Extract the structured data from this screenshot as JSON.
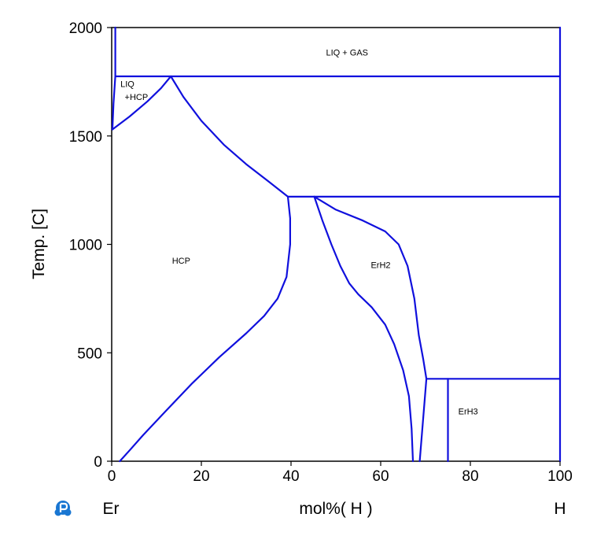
{
  "chart_data": {
    "type": "line",
    "title": "",
    "xlabel": "mol%( H )",
    "ylabel": "Temp. [C]",
    "x_left_element": "Er",
    "x_right_element": "H",
    "xlim": [
      0,
      100
    ],
    "ylim": [
      0,
      2000
    ],
    "x_ticks": [
      0,
      20,
      40,
      60,
      80,
      100
    ],
    "y_ticks": [
      0,
      500,
      1000,
      1500,
      2000
    ],
    "line_color": "#1010dd",
    "region_labels": [
      {
        "text": "LIQ + GAS",
        "x": 52.5,
        "y": 1885
      },
      {
        "text": "LIQ",
        "x": 3.5,
        "y": 1740
      },
      {
        "text": "+HCP",
        "x": 5.5,
        "y": 1680
      },
      {
        "text": "HCP",
        "x": 15.5,
        "y": 925
      },
      {
        "text": "ErH2",
        "x": 60.0,
        "y": 905
      },
      {
        "text": "ErH3",
        "x": 79.5,
        "y": 230
      }
    ],
    "series": [
      {
        "values": [
          [
            0.8,
            2000
          ],
          [
            0.8,
            1775
          ]
        ]
      },
      {
        "values": [
          [
            0.8,
            1775
          ],
          [
            100,
            1775
          ]
        ]
      },
      {
        "values": [
          [
            0.8,
            1775
          ],
          [
            0.4,
            1650
          ],
          [
            0.15,
            1530
          ]
        ]
      },
      {
        "values": [
          [
            0.15,
            1530
          ],
          [
            4,
            1590
          ],
          [
            8,
            1660
          ],
          [
            11,
            1720
          ],
          [
            13.2,
            1775
          ]
        ]
      },
      {
        "values": [
          [
            13.2,
            1775
          ],
          [
            16,
            1680
          ],
          [
            20,
            1570
          ],
          [
            25,
            1460
          ],
          [
            30,
            1370
          ],
          [
            35,
            1290
          ],
          [
            39.3,
            1220
          ]
        ]
      },
      {
        "values": [
          [
            39.3,
            1220
          ],
          [
            100,
            1220
          ]
        ]
      },
      {
        "values": [
          [
            39.3,
            1220
          ],
          [
            39.8,
            1120
          ],
          [
            39.8,
            1000
          ],
          [
            39,
            850
          ],
          [
            37,
            750
          ],
          [
            34,
            670
          ],
          [
            30,
            590
          ],
          [
            24,
            480
          ],
          [
            18,
            360
          ],
          [
            12,
            230
          ],
          [
            7,
            120
          ],
          [
            4,
            50
          ],
          [
            1.8,
            0
          ]
        ]
      },
      {
        "values": [
          [
            45.2,
            1220
          ],
          [
            47,
            1110
          ],
          [
            49,
            1000
          ],
          [
            51,
            900
          ],
          [
            53,
            820
          ],
          [
            55,
            770
          ],
          [
            58,
            710
          ],
          [
            61,
            630
          ],
          [
            63,
            540
          ],
          [
            65,
            420
          ],
          [
            66.3,
            300
          ],
          [
            66.9,
            150
          ],
          [
            67.2,
            0
          ]
        ]
      },
      {
        "values": [
          [
            45.2,
            1220
          ],
          [
            50,
            1160
          ],
          [
            56,
            1110
          ],
          [
            61,
            1060
          ],
          [
            64,
            1000
          ],
          [
            66,
            900
          ],
          [
            67.5,
            750
          ],
          [
            68.5,
            580
          ],
          [
            69.5,
            470
          ],
          [
            70.2,
            380
          ]
        ]
      },
      {
        "values": [
          [
            70.2,
            380
          ],
          [
            68.7,
            0
          ]
        ]
      },
      {
        "values": [
          [
            70.2,
            380
          ],
          [
            100,
            380
          ]
        ]
      },
      {
        "values": [
          [
            75,
            380
          ],
          [
            75,
            0
          ]
        ]
      },
      {
        "values": [
          [
            100,
            2000
          ],
          [
            100,
            0
          ]
        ]
      }
    ]
  }
}
